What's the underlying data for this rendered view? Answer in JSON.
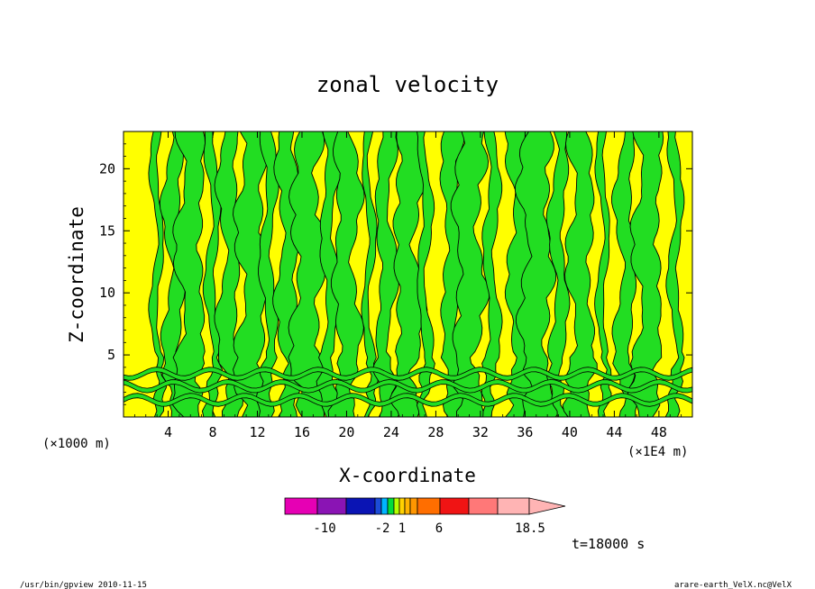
{
  "chart_data": {
    "type": "heatmap",
    "title": "zonal velocity",
    "xlabel": "X-coordinate",
    "ylabel": "Z-coordinate",
    "x_unit": "(×1E4 m)",
    "y_unit": "(×1000 m)",
    "xlim": [
      0,
      51
    ],
    "ylim": [
      0,
      23
    ],
    "x_ticks": [
      "4",
      "8",
      "12",
      "16",
      "20",
      "24",
      "28",
      "32",
      "36",
      "40",
      "44",
      "48"
    ],
    "y_ticks": [
      "5",
      "10",
      "15",
      "20"
    ],
    "field_colors": {
      "low": "#22dd22",
      "high": "#ffff00",
      "contour": "#000000"
    },
    "colorbar": {
      "colors": [
        "#e600b4",
        "#8a14b4",
        "#0a14b4",
        "#1c4cd8",
        "#00b4ff",
        "#00dc3c",
        "#b4ff00",
        "#ffd200",
        "#ffb400",
        "#ff9600",
        "#ff6e00",
        "#f01414",
        "#ff7878",
        "#ffb4b4"
      ],
      "labels": [
        "-10",
        "-2",
        "1",
        "6",
        "18.5"
      ]
    },
    "time_label": "t=18000 s"
  },
  "footer": {
    "left": "/usr/bin/gpview  2010-11-15",
    "right": "arare-earth_VelX.nc@VelX"
  }
}
